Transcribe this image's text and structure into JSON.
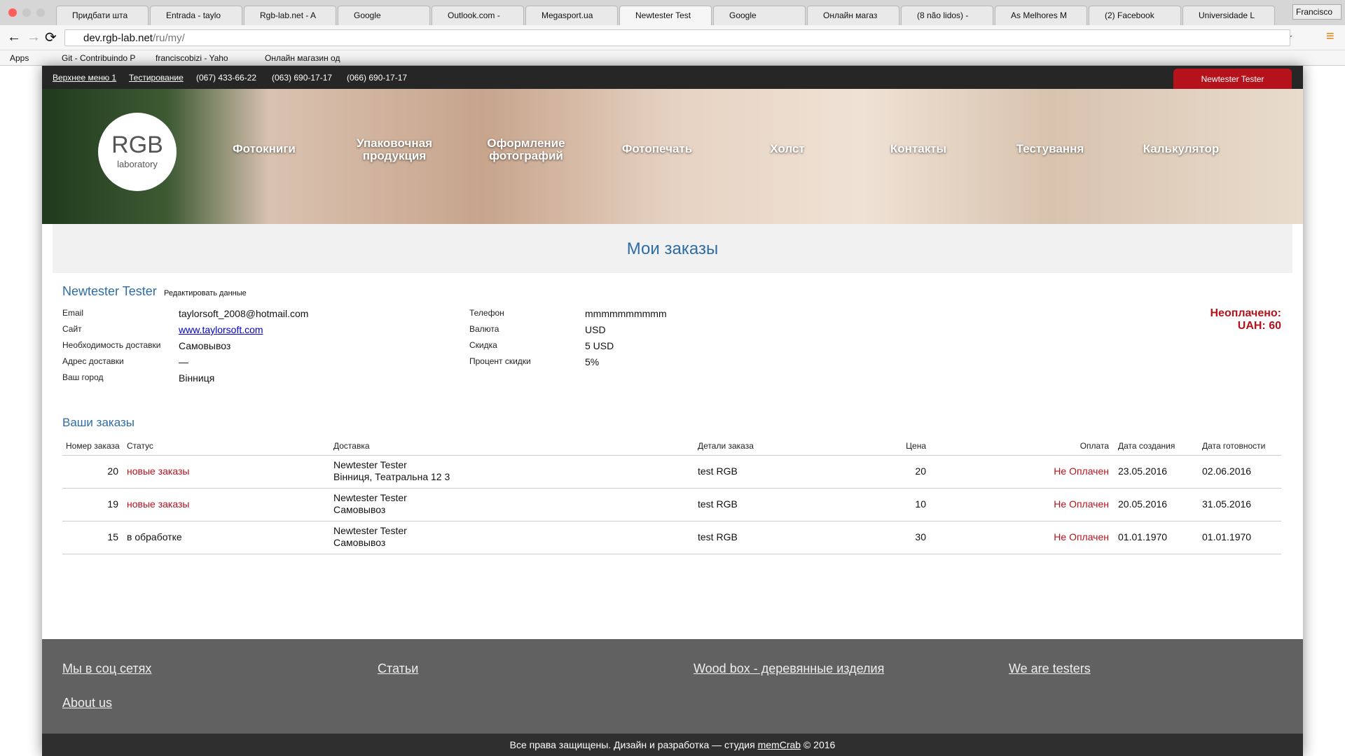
{
  "browser": {
    "tabs": [
      "Придбати шта",
      "Entrada - taylo",
      "Rgb-lab.net - A",
      "Google",
      "Outlook.com -",
      "Megasport.ua",
      "Newtester Test",
      "Google",
      "Онлайн магаз",
      "(8 não lidos) -",
      "As Melhores M",
      "(2) Facebook",
      "Universidade L"
    ],
    "user": "Francisco",
    "url_host": "dev.rgb-lab.net",
    "url_path": "/ru/my/",
    "bookmarks": [
      "Apps",
      "Git - Contribuindo P",
      "franciscobizi - Yaho",
      "Онлайн магазин од"
    ]
  },
  "topbar": {
    "links": [
      "Верхнее меню 1",
      "Тестирование"
    ],
    "phones": [
      "(067) 433-66-22",
      "(063) 690-17-17",
      "(066) 690-17-17"
    ],
    "user_button": "Newtester Tester"
  },
  "header": {
    "logo_title": "RGB",
    "logo_subtitle": "laboratory",
    "nav": [
      "Фотокниги",
      "Упаковочная продукция",
      "Оформление фотографий",
      "Фотопечать",
      "Холст",
      "Контакты",
      "Тестування",
      "Калькулятор"
    ]
  },
  "page": {
    "title": "Мои заказы",
    "user_name": "Newtester Tester",
    "edit_link": "Редактировать данные",
    "info_left": [
      {
        "label": "Email",
        "value": "taylorsoft_2008@hotmail.com"
      },
      {
        "label": "Сайт",
        "value": "www.taylorsoft.com"
      },
      {
        "label": "Необходимость доставки",
        "value": "Самовывоз"
      },
      {
        "label": "Адрес доставки",
        "value": "—"
      },
      {
        "label": "Ваш город",
        "value": "Вінниця"
      }
    ],
    "info_right": [
      {
        "label": "Телефон",
        "value": "mmmmmmmmmm"
      },
      {
        "label": "Валюта",
        "value": "USD"
      },
      {
        "label": "Скидка",
        "value": "5 USD"
      },
      {
        "label": "Процент скидки",
        "value": "5%"
      }
    ],
    "unpaid_label": "Неоплачено:",
    "unpaid_amount": "UAH: 60",
    "orders_title": "Ваши заказы",
    "table": {
      "headers": [
        "Номер заказа",
        "Статус",
        "Доставка",
        "Детали заказа",
        "Цена",
        "Оплата",
        "Дата создания",
        "Дата готовности"
      ],
      "rows": [
        {
          "number": 20,
          "status": "новые заказы",
          "status_color": "#b5121b",
          "delivery": [
            "Newtester Tester",
            "Вінниця, Театральна 12 3"
          ],
          "details": "test RGB",
          "price": 20,
          "payment": "Не Оплачен",
          "created": "23.05.2016",
          "ready": "02.06.2016"
        },
        {
          "number": 19,
          "status": "новые заказы",
          "status_color": "#b5121b",
          "delivery": [
            "Newtester Tester",
            "Самовывоз"
          ],
          "details": "test RGB",
          "price": 10,
          "payment": "Не Оплачен",
          "created": "20.05.2016",
          "ready": "31.05.2016"
        },
        {
          "number": 15,
          "status": "в обработке",
          "status_color": "#111111",
          "delivery": [
            "Newtester Tester",
            "Самовывоз"
          ],
          "details": "test RGB",
          "price": 30,
          "payment": "Не Оплачен",
          "created": "01.01.1970",
          "ready": "01.01.1970"
        }
      ]
    }
  },
  "footer": {
    "links": [
      "Мы в соц сетях",
      "Статьи",
      "Wood box - деревянные изделия",
      "We are testers",
      "About us"
    ],
    "copyright_before": "Все права защищены. Дизайн и разработка — студия",
    "copyright_studio": "memCrab",
    "copyright_after": "© 2016"
  }
}
